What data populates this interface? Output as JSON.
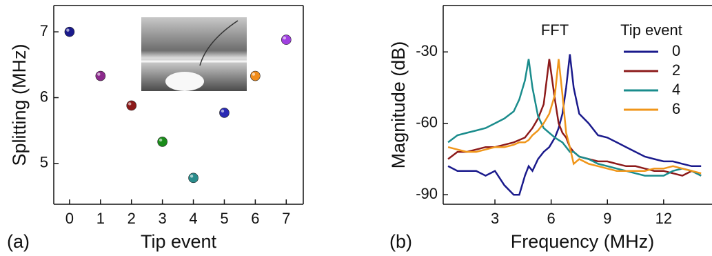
{
  "chart_data": [
    {
      "type": "scatter",
      "panel": "(a)",
      "xlabel": "Tip event",
      "ylabel": "Splitting (MHz)",
      "x": [
        0,
        1,
        2,
        3,
        4,
        5,
        6,
        7
      ],
      "values": [
        7.0,
        6.33,
        5.88,
        5.33,
        4.78,
        5.77,
        6.33,
        6.88
      ],
      "colors": [
        "#1a1a8c",
        "#8c2a8c",
        "#8c1a1a",
        "#1a8c1a",
        "#2a8c8c",
        "#2a2ab4",
        "#f08c1a",
        "#a040e0"
      ],
      "xlim": [
        -0.51,
        7.55
      ],
      "ylim": [
        4.38,
        7.4
      ],
      "xticks": [
        0,
        1,
        2,
        3,
        4,
        5,
        6,
        7
      ],
      "yticks": [
        5,
        6,
        7
      ]
    },
    {
      "type": "line",
      "panel": "(b)",
      "xlabel": "Frequency (MHz)",
      "ylabel": "Magnitude (dB)",
      "annotation": "FFT",
      "legend_title": "Tip event",
      "legend": "upper right",
      "x": [
        0.5,
        1,
        1.5,
        2,
        2.5,
        3,
        3.5,
        4,
        4.3,
        4.6,
        4.8,
        5,
        5.3,
        5.6,
        5.9,
        6.2,
        6.4,
        6.6,
        6.8,
        7,
        7.2,
        7.5,
        8,
        8.5,
        9,
        9.5,
        10,
        10.5,
        11,
        11.5,
        12,
        12.5,
        13,
        13.5,
        14
      ],
      "series": [
        {
          "name": "0",
          "color": "#1a1a8c",
          "values": [
            -78,
            -80,
            -80,
            -80,
            -82,
            -80,
            -86,
            -90,
            -90,
            -82,
            -78,
            -80,
            -75,
            -72,
            -70,
            -66,
            -62,
            -56,
            -45,
            -31,
            -45,
            -56,
            -60,
            -65,
            -66,
            -68,
            -70,
            -72,
            -74,
            -75,
            -76,
            -76,
            -77,
            -78,
            -78
          ]
        },
        {
          "name": "2",
          "color": "#8c1a1a",
          "values": [
            -75,
            -72,
            -72,
            -71,
            -70,
            -70,
            -69,
            -68,
            -67,
            -66,
            -64,
            -62,
            -58,
            -52,
            -33,
            -50,
            -60,
            -64,
            -66,
            -70,
            -72,
            -74,
            -75,
            -76,
            -76,
            -77,
            -78,
            -78,
            -79,
            -80,
            -80,
            -81,
            -82,
            -80,
            -82
          ]
        },
        {
          "name": "4",
          "color": "#1a8c8c",
          "values": [
            -68,
            -65,
            -64,
            -63,
            -62,
            -60,
            -58,
            -55,
            -50,
            -42,
            -33,
            -45,
            -57,
            -62,
            -64,
            -66,
            -67,
            -68,
            -70,
            -72,
            -72,
            -74,
            -75,
            -77,
            -78,
            -79,
            -80,
            -81,
            -82,
            -82,
            -82,
            -80,
            -79,
            -80,
            -82
          ]
        },
        {
          "name": "6",
          "color": "#f0961a",
          "values": [
            -70,
            -71,
            -72,
            -72,
            -71,
            -70,
            -70,
            -69,
            -68,
            -68,
            -67,
            -65,
            -63,
            -60,
            -56,
            -48,
            -33,
            -48,
            -64,
            -70,
            -77,
            -75,
            -77,
            -78,
            -79,
            -80,
            -80,
            -80,
            -80,
            -79,
            -79,
            -78,
            -79,
            -80,
            -81
          ]
        }
      ],
      "xlim": [
        0.24,
        14.58
      ],
      "ylim": [
        -94,
        -10.5
      ],
      "xticks": [
        3,
        6,
        9,
        12
      ],
      "yticks": [
        -90,
        -60,
        -30
      ]
    }
  ]
}
